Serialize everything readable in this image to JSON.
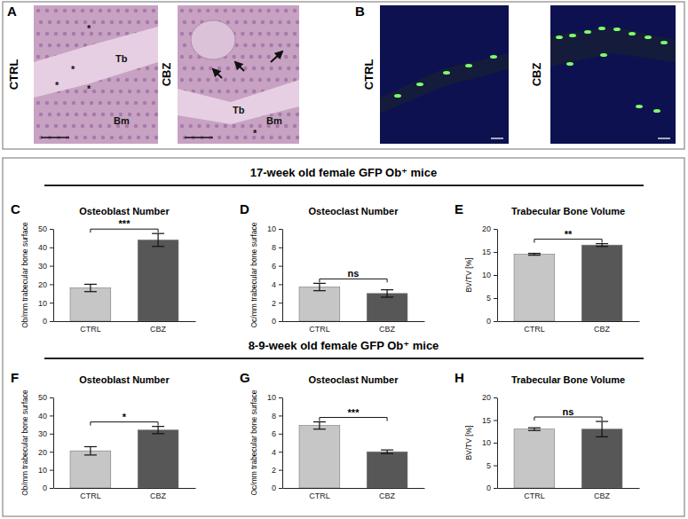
{
  "figure": {
    "panels": [
      {
        "label": "A",
        "conditions": [
          "CTRL",
          "CBZ"
        ],
        "annotations": [
          [
            "*",
            "*",
            "*",
            "*",
            "Tb",
            "Bm"
          ],
          [
            "Tb",
            "Bm",
            "*"
          ]
        ]
      },
      {
        "label": "B",
        "conditions": [
          "CTRL",
          "CBZ"
        ]
      }
    ],
    "sections": [
      "17-week old female GFP Ob⁺ mice",
      "8-9-week old female GFP Ob⁺ mice"
    ]
  },
  "chart_data": [
    {
      "type": "bar",
      "panel": "C",
      "title": "Osteoblast Number",
      "y_label": "Ob/mm trabecular bone surface",
      "categories": [
        "CTRL",
        "CBZ"
      ],
      "values": [
        18,
        44
      ],
      "errors": [
        2,
        3.5
      ],
      "colors": [
        "#c6c6c6",
        "#575757"
      ],
      "ylim": [
        0,
        50
      ],
      "yticks": [
        0,
        10,
        20,
        30,
        40,
        50
      ],
      "annotations": [
        "***"
      ]
    },
    {
      "type": "bar",
      "panel": "D",
      "title": "Osteoclast Number",
      "y_label": "Oc/mm trabecular bone surface",
      "categories": [
        "CTRL",
        "CBZ"
      ],
      "values": [
        3.7,
        3.0
      ],
      "errors": [
        0.4,
        0.4
      ],
      "colors": [
        "#c6c6c6",
        "#575757"
      ],
      "ylim": [
        0,
        10
      ],
      "yticks": [
        0,
        2,
        4,
        6,
        8,
        10
      ],
      "annotations": [
        "ns"
      ]
    },
    {
      "type": "bar",
      "panel": "E",
      "title": "Trabecular Bone Volume",
      "y_label": "BV/TV [%]",
      "categories": [
        "CTRL",
        "CBZ"
      ],
      "values": [
        14.5,
        16.5
      ],
      "errors": [
        0.2,
        0.3
      ],
      "colors": [
        "#c6c6c6",
        "#575757"
      ],
      "ylim": [
        0,
        20
      ],
      "yticks": [
        0,
        5,
        10,
        15,
        20
      ],
      "annotations": [
        "**"
      ]
    },
    {
      "type": "bar",
      "panel": "F",
      "title": "Osteoblast Number",
      "y_label": "Ob/mm trabecular bone surface",
      "categories": [
        "CTRL",
        "CBZ"
      ],
      "values": [
        20.5,
        32
      ],
      "errors": [
        2.3,
        2
      ],
      "colors": [
        "#c6c6c6",
        "#575757"
      ],
      "ylim": [
        0,
        50
      ],
      "yticks": [
        0,
        10,
        20,
        30,
        40,
        50
      ],
      "annotations": [
        "*"
      ]
    },
    {
      "type": "bar",
      "panel": "G",
      "title": "Osteoclast Number",
      "y_label": "Oc/mm trabecular bone surface",
      "categories": [
        "CTRL",
        "CBZ"
      ],
      "values": [
        6.9,
        4.0
      ],
      "errors": [
        0.4,
        0.2
      ],
      "colors": [
        "#c6c6c6",
        "#575757"
      ],
      "ylim": [
        0,
        10
      ],
      "yticks": [
        0,
        2,
        4,
        6,
        8,
        10
      ],
      "annotations": [
        "***"
      ]
    },
    {
      "type": "bar",
      "panel": "H",
      "title": "Trabecular Bone Volume",
      "y_label": "BV/TV [%]",
      "categories": [
        "CTRL",
        "CBZ"
      ],
      "values": [
        13,
        13
      ],
      "errors": [
        0.3,
        1.7
      ],
      "colors": [
        "#c6c6c6",
        "#575757"
      ],
      "ylim": [
        0,
        20
      ],
      "yticks": [
        0,
        5,
        10,
        15,
        20
      ],
      "annotations": [
        "ns"
      ]
    }
  ]
}
